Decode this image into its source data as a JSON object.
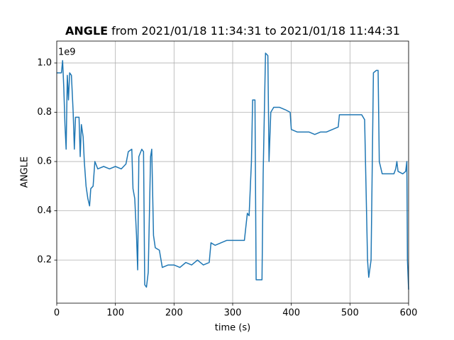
{
  "chart_data": {
    "type": "line",
    "title_name": "ANGLE",
    "title_rest": "from 2021/01/18 11:34:31 to 2021/01/18 11:44:31",
    "x_label": "time (s)",
    "y_label": "ANGLE",
    "y_offset_label": "1e9",
    "grid": true,
    "xlim": [
      0,
      600
    ],
    "xticks": [
      0,
      100,
      200,
      300,
      400,
      500,
      600
    ],
    "ylim": [
      0.025,
      1.089
    ],
    "yticks": [
      0.2,
      0.4,
      0.6,
      0.8,
      {
        "value": 1,
        "label": "1.0"
      }
    ],
    "series": [
      {
        "color": "#1f77b4",
        "x": [
          0,
          8,
          10,
          12,
          14,
          16,
          18,
          20,
          22,
          25,
          28,
          30,
          32,
          38,
          40,
          42,
          45,
          47,
          50,
          53,
          56,
          58,
          62,
          65,
          70,
          80,
          90,
          100,
          110,
          118,
          122,
          128,
          130,
          133,
          136,
          138,
          140,
          145,
          148,
          150,
          153,
          156,
          160,
          162,
          165,
          168,
          175,
          180,
          190,
          200,
          210,
          220,
          230,
          240,
          250,
          260,
          263,
          270,
          280,
          290,
          300,
          310,
          320,
          325,
          328,
          332,
          334,
          338,
          340,
          345,
          350,
          352,
          356,
          360,
          362,
          365,
          370,
          380,
          390,
          398,
          400,
          410,
          420,
          430,
          440,
          450,
          460,
          470,
          480,
          482,
          490,
          500,
          510,
          520,
          525,
          530,
          532,
          536,
          540,
          545,
          548,
          550,
          555,
          565,
          575,
          578,
          580,
          582,
          590,
          595,
          597,
          598,
          600
        ],
        "values": [
          0.96,
          0.96,
          1.01,
          0.9,
          0.75,
          0.65,
          0.95,
          0.85,
          0.96,
          0.95,
          0.8,
          0.65,
          0.78,
          0.78,
          0.62,
          0.75,
          0.7,
          0.6,
          0.5,
          0.45,
          0.42,
          0.49,
          0.5,
          0.6,
          0.57,
          0.58,
          0.57,
          0.58,
          0.57,
          0.59,
          0.64,
          0.65,
          0.49,
          0.45,
          0.3,
          0.16,
          0.62,
          0.65,
          0.64,
          0.1,
          0.09,
          0.15,
          0.62,
          0.65,
          0.3,
          0.25,
          0.24,
          0.17,
          0.18,
          0.18,
          0.17,
          0.19,
          0.18,
          0.2,
          0.18,
          0.19,
          0.27,
          0.26,
          0.27,
          0.28,
          0.28,
          0.28,
          0.28,
          0.39,
          0.38,
          0.6,
          0.85,
          0.85,
          0.12,
          0.12,
          0.12,
          0.55,
          1.04,
          1.03,
          0.6,
          0.8,
          0.82,
          0.82,
          0.81,
          0.8,
          0.73,
          0.72,
          0.72,
          0.72,
          0.71,
          0.72,
          0.72,
          0.73,
          0.74,
          0.79,
          0.79,
          0.79,
          0.79,
          0.79,
          0.77,
          0.2,
          0.13,
          0.2,
          0.96,
          0.97,
          0.97,
          0.6,
          0.55,
          0.55,
          0.55,
          0.57,
          0.6,
          0.56,
          0.55,
          0.56,
          0.6,
          0.2,
          0.08
        ]
      }
    ]
  }
}
